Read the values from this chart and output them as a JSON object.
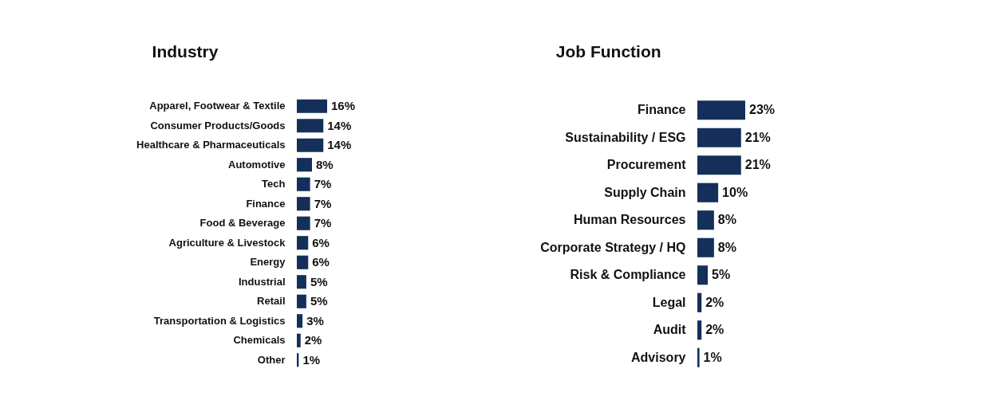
{
  "chart_data": [
    {
      "type": "bar",
      "orientation": "horizontal",
      "title": "Industry",
      "color": "#14305a",
      "categories": [
        "Apparel, Footwear & Textile",
        "Consumer Products/Goods",
        "Healthcare & Pharmaceuticals",
        "Automotive",
        "Tech",
        "Finance",
        "Food & Beverage",
        "Agriculture & Livestock",
        "Energy",
        "Industrial",
        "Retail",
        "Transportation & Logistics",
        "Chemicals",
        "Other"
      ],
      "values": [
        16,
        14,
        14,
        8,
        7,
        7,
        7,
        6,
        6,
        5,
        5,
        3,
        2,
        1
      ],
      "value_labels": [
        "16%",
        "14%",
        "14%",
        "8%",
        "7%",
        "7%",
        "7%",
        "6%",
        "6%",
        "5%",
        "5%",
        "3%",
        "2%",
        "1%"
      ]
    },
    {
      "type": "bar",
      "orientation": "horizontal",
      "title": "Job Function",
      "color": "#14305a",
      "categories": [
        "Finance",
        "Sustainability / ESG",
        "Procurement",
        "Supply Chain",
        "Human Resources",
        "Corporate Strategy / HQ",
        "Risk & Compliance",
        "Legal",
        "Audit",
        "Advisory"
      ],
      "values": [
        23,
        21,
        21,
        10,
        8,
        8,
        5,
        2,
        2,
        1
      ],
      "value_labels": [
        "23%",
        "21%",
        "21%",
        "10%",
        "8%",
        "8%",
        "5%",
        "2%",
        "2%",
        "1%"
      ]
    }
  ]
}
